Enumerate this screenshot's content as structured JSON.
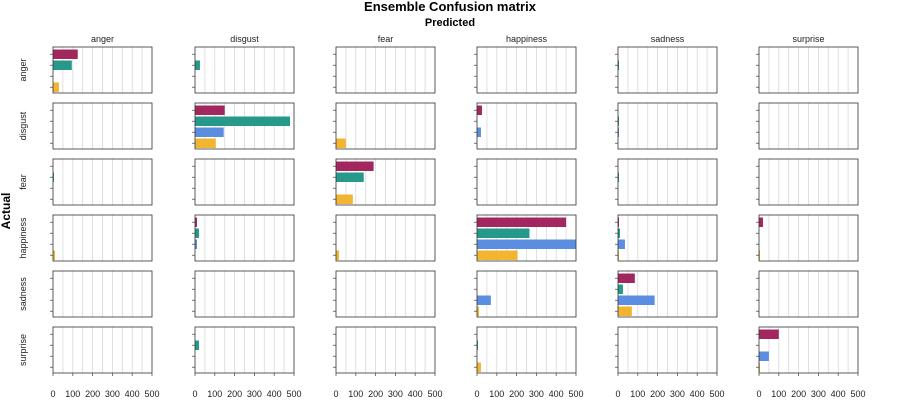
{
  "chart_data": {
    "type": "bar",
    "orientation": "horizontal",
    "layout": "faceted-grid",
    "title": "Ensemble Confusion matrix",
    "subtitle": "Predicted",
    "ylabel": "Actual",
    "classes": [
      "anger",
      "disgust",
      "fear",
      "happiness",
      "sadness",
      "surprise"
    ],
    "xlim": [
      0,
      500
    ],
    "xticks": [
      0,
      100,
      200,
      300,
      400,
      500
    ],
    "grid": true,
    "bars_per_cell": 4,
    "bar_colors": [
      "#a3275f",
      "#26998b",
      "#5b8ee0",
      "#f2b531"
    ],
    "matrix": [
      [
        [
          125,
          95,
          0,
          30
        ],
        [
          0,
          25,
          0,
          0
        ],
        [
          0,
          0,
          0,
          0
        ],
        [
          0,
          0,
          0,
          0
        ],
        [
          0,
          5,
          0,
          0
        ],
        [
          0,
          0,
          0,
          0
        ]
      ],
      [
        [
          0,
          0,
          0,
          0
        ],
        [
          150,
          480,
          145,
          105
        ],
        [
          0,
          0,
          0,
          50
        ],
        [
          25,
          0,
          20,
          0
        ],
        [
          0,
          5,
          5,
          0
        ],
        [
          0,
          0,
          0,
          0
        ]
      ],
      [
        [
          0,
          5,
          0,
          0
        ],
        [
          0,
          0,
          0,
          0
        ],
        [
          190,
          140,
          0,
          85
        ],
        [
          0,
          0,
          0,
          0
        ],
        [
          0,
          5,
          0,
          0
        ],
        [
          0,
          0,
          0,
          0
        ]
      ],
      [
        [
          0,
          0,
          0,
          10
        ],
        [
          10,
          20,
          10,
          0
        ],
        [
          0,
          0,
          0,
          15
        ],
        [
          450,
          265,
          505,
          205
        ],
        [
          5,
          10,
          35,
          5
        ],
        [
          20,
          0,
          0,
          5
        ]
      ],
      [
        [
          0,
          0,
          0,
          0
        ],
        [
          0,
          0,
          0,
          0
        ],
        [
          0,
          0,
          0,
          0
        ],
        [
          0,
          0,
          70,
          10
        ],
        [
          85,
          25,
          185,
          70
        ],
        [
          0,
          0,
          0,
          0
        ]
      ],
      [
        [
          0,
          0,
          0,
          0
        ],
        [
          0,
          20,
          0,
          0
        ],
        [
          0,
          0,
          0,
          0
        ],
        [
          0,
          5,
          0,
          20
        ],
        [
          0,
          0,
          0,
          0
        ],
        [
          100,
          0,
          50,
          5
        ]
      ]
    ]
  }
}
